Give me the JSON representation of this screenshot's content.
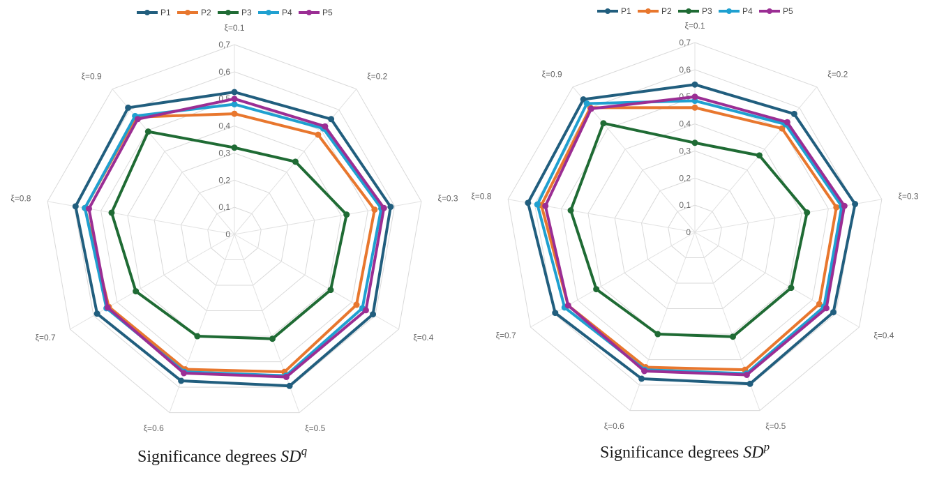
{
  "chart_data": [
    {
      "type": "radar",
      "title": "",
      "caption_text": "Significance degrees",
      "caption_symbol": "SD",
      "caption_superscript": "q",
      "categories": [
        "ξ=0.1",
        "ξ=0.2",
        "ξ=0.3",
        "ξ=0.4",
        "ξ=0.5",
        "ξ=0.6",
        "ξ=0.7",
        "ξ=0.8",
        "ξ=0.9"
      ],
      "tick_labels": [
        "0",
        "0,1",
        "0,2",
        "0,3",
        "0,4",
        "0,5",
        "0,6",
        "0,7"
      ],
      "ylim": [
        0,
        0.7
      ],
      "legend_position": "top",
      "series": [
        {
          "name": "P1",
          "color": "#215e7e",
          "values": [
            0.525,
            0.555,
            0.585,
            0.59,
            0.595,
            0.575,
            0.585,
            0.595,
            0.61
          ]
        },
        {
          "name": "P2",
          "color": "#e8772e",
          "values": [
            0.445,
            0.48,
            0.525,
            0.52,
            0.54,
            0.53,
            0.535,
            0.56,
            0.565
          ]
        },
        {
          "name": "P3",
          "color": "#1f6b34",
          "values": [
            0.32,
            0.35,
            0.42,
            0.41,
            0.41,
            0.4,
            0.42,
            0.46,
            0.495
          ]
        },
        {
          "name": "P4",
          "color": "#1fa0d0",
          "values": [
            0.48,
            0.51,
            0.55,
            0.545,
            0.555,
            0.54,
            0.545,
            0.56,
            0.57
          ]
        },
        {
          "name": "P5",
          "color": "#9b2e94",
          "values": [
            0.5,
            0.52,
            0.56,
            0.56,
            0.56,
            0.545,
            0.54,
            0.545,
            0.555
          ]
        }
      ]
    },
    {
      "type": "radar",
      "title": "",
      "caption_text": "Significance degrees",
      "caption_symbol": "SD",
      "caption_superscript": "p",
      "categories": [
        "ξ=0.1",
        "ξ=0.2",
        "ξ=0.3",
        "ξ=0.4",
        "ξ=0.5",
        "ξ=0.6",
        "ξ=0.7",
        "ξ=0.8",
        "ξ=0.9"
      ],
      "tick_labels": [
        "0",
        "0,1",
        "0,2",
        "0,3",
        "0,4",
        "0,5",
        "0,6",
        "0,7"
      ],
      "ylim": [
        0,
        0.7
      ],
      "legend_position": "top",
      "series": [
        {
          "name": "P1",
          "color": "#215e7e",
          "values": [
            0.545,
            0.57,
            0.6,
            0.59,
            0.595,
            0.575,
            0.595,
            0.625,
            0.64
          ]
        },
        {
          "name": "P2",
          "color": "#e8772e",
          "values": [
            0.46,
            0.5,
            0.53,
            0.53,
            0.54,
            0.53,
            0.54,
            0.575,
            0.6
          ]
        },
        {
          "name": "P3",
          "color": "#1f6b34",
          "values": [
            0.33,
            0.37,
            0.42,
            0.41,
            0.41,
            0.4,
            0.42,
            0.465,
            0.525
          ]
        },
        {
          "name": "P4",
          "color": "#1fa0d0",
          "values": [
            0.485,
            0.52,
            0.55,
            0.55,
            0.555,
            0.54,
            0.555,
            0.59,
            0.62
          ]
        },
        {
          "name": "P5",
          "color": "#9b2e94",
          "values": [
            0.5,
            0.53,
            0.56,
            0.56,
            0.56,
            0.545,
            0.54,
            0.56,
            0.595
          ]
        }
      ]
    }
  ]
}
